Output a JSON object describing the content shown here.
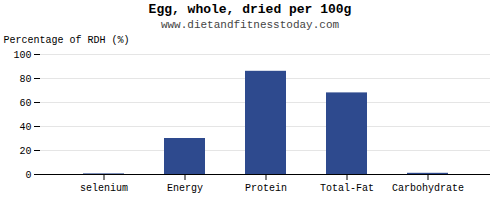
{
  "chart_data": {
    "type": "bar",
    "title": "Egg, whole, dried per 100g",
    "subtitle": "www.dietandfitnesstoday.com",
    "ylabel": "Percentage of RDH (%)",
    "categories": [
      "selenium",
      "Energy",
      "Protein",
      "Total-Fat",
      "Carbohydrate"
    ],
    "values": [
      0.5,
      30,
      86,
      68,
      1
    ],
    "color": "#2e4a8e",
    "ylim": [
      0,
      100
    ],
    "yticks": [
      0,
      20,
      40,
      60,
      80,
      100
    ],
    "grid": true
  }
}
